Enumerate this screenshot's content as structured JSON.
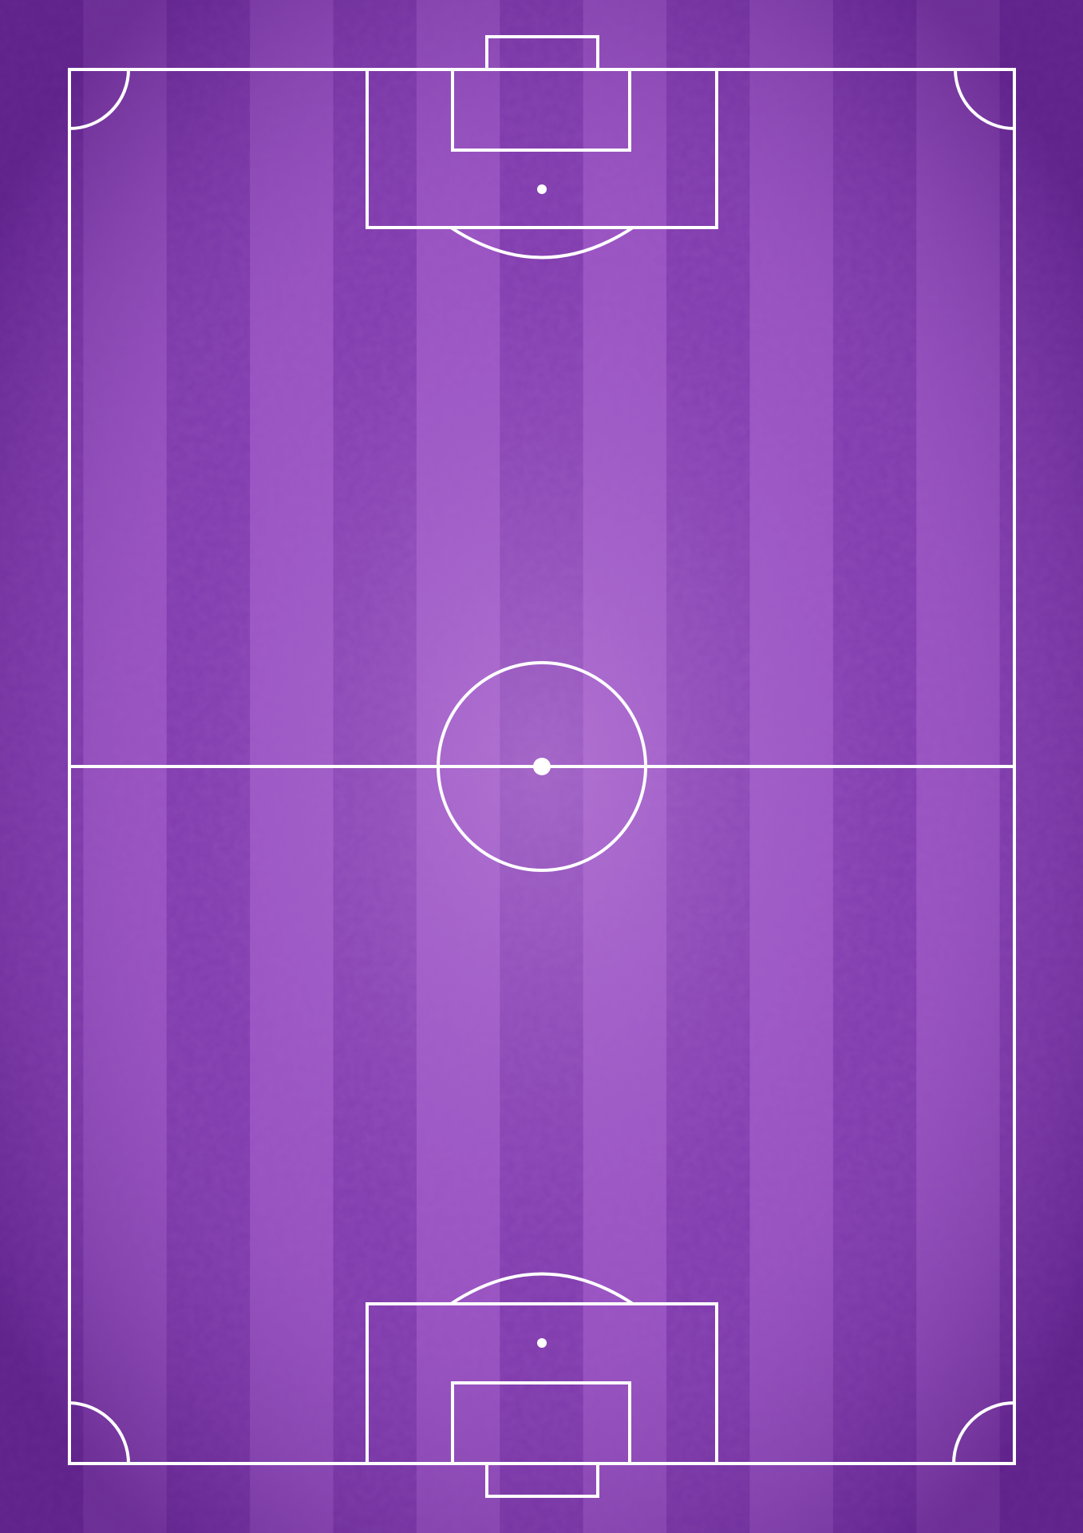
{
  "pitch": {
    "colors": {
      "stripe_dark": "#7a34a8",
      "stripe_light": "#9750c0",
      "center_glow": "#c58fe0",
      "edge_vignette": "#4a1474",
      "line": "#ffffff"
    },
    "stripe_count": 13
  }
}
